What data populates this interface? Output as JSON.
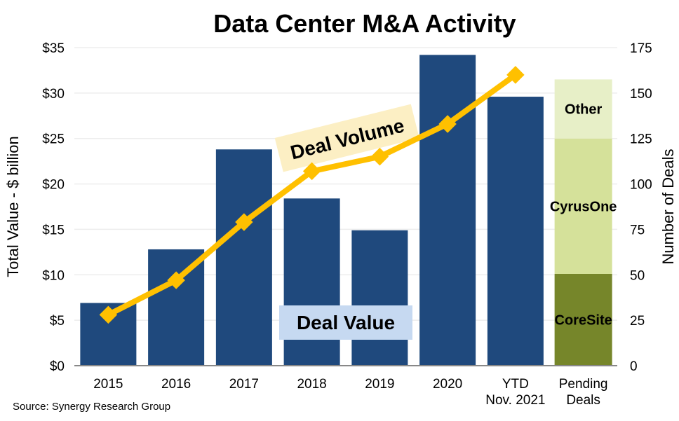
{
  "chart_data": {
    "type": "bar",
    "title": "Data Center M&A Activity",
    "ylabel": "Total Value - $ billion",
    "y2label": "Number of Deals",
    "ylim": [
      0,
      35
    ],
    "y2lim": [
      0,
      175
    ],
    "yticks": [
      "$0",
      "$5",
      "$10",
      "$15",
      "$20",
      "$25",
      "$30",
      "$35"
    ],
    "y2ticks": [
      "0",
      "25",
      "50",
      "75",
      "100",
      "125",
      "150",
      "175"
    ],
    "grid": true,
    "categories": [
      [
        "2015"
      ],
      [
        "2016"
      ],
      [
        "2017"
      ],
      [
        "2018"
      ],
      [
        "2019"
      ],
      [
        "2020"
      ],
      [
        "YTD",
        "Nov. 2021"
      ],
      [
        "Pending",
        "Deals"
      ]
    ],
    "series": [
      {
        "name": "Deal Value",
        "type": "bar",
        "axis": "left",
        "color": "#1F497D",
        "values": [
          6.9,
          12.8,
          23.8,
          18.4,
          14.9,
          34.2,
          29.6,
          null
        ]
      },
      {
        "name": "Deal Volume",
        "type": "line",
        "axis": "right",
        "color": "#FFC000",
        "values": [
          28,
          47,
          79,
          107,
          115,
          133,
          160,
          null
        ]
      }
    ],
    "pending_stack": [
      {
        "name": "CoreSite",
        "value": 10.1,
        "color": "#76862A"
      },
      {
        "name": "CyrusOne",
        "value": 14.9,
        "color": "#D5E19A"
      },
      {
        "name": "Other",
        "value": 6.5,
        "color": "#E7EFC7"
      }
    ],
    "annotations": {
      "deal_value": {
        "text": "Deal Value",
        "bg": "#C6D9F1"
      },
      "deal_volume": {
        "text": "Deal Volume",
        "bg": "#FCEFC4"
      }
    },
    "source": "Source: Synergy Research Group"
  }
}
